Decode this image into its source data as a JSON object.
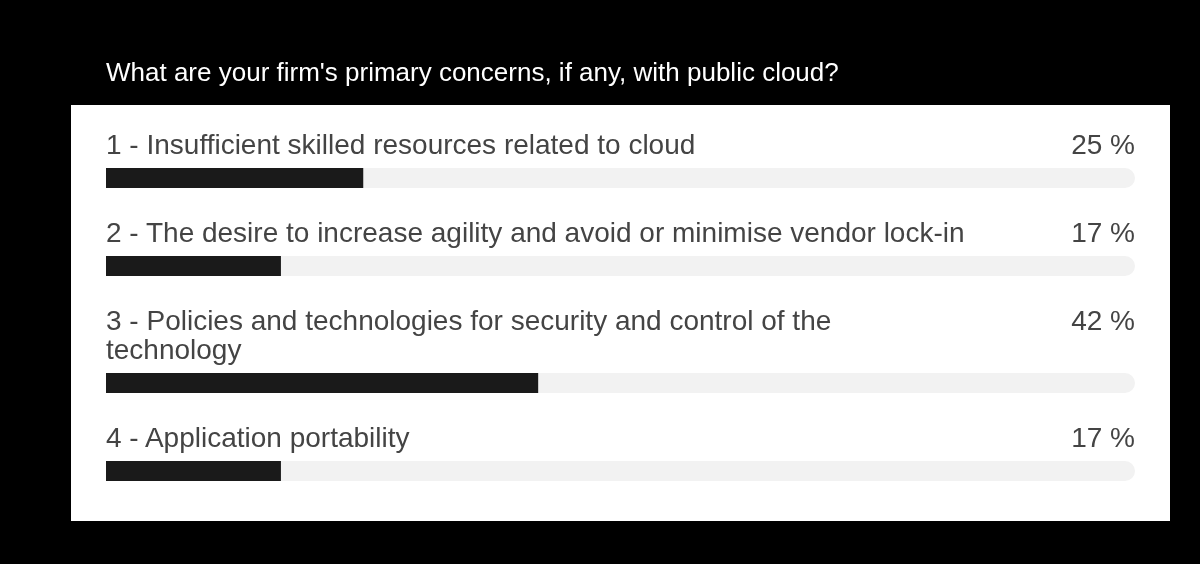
{
  "chart_data": {
    "type": "bar",
    "orientation": "horizontal",
    "title": "What are your firm's primary concerns, if any, with public cloud?",
    "categories": [
      "1 - Insufficient skilled resources related to cloud",
      "2 - The desire to increase agility and avoid or minimise vendor lock-in",
      "3 - Policies and technologies for security and control of the technology",
      "4 - Application portability"
    ],
    "values": [
      25,
      17,
      42,
      17
    ],
    "color": "#1a1a1a",
    "value_labels": [
      "25 %",
      "17 %",
      "42 %",
      "17 %"
    ],
    "xlim": [
      0,
      100
    ],
    "tick_labels": "y"
  }
}
